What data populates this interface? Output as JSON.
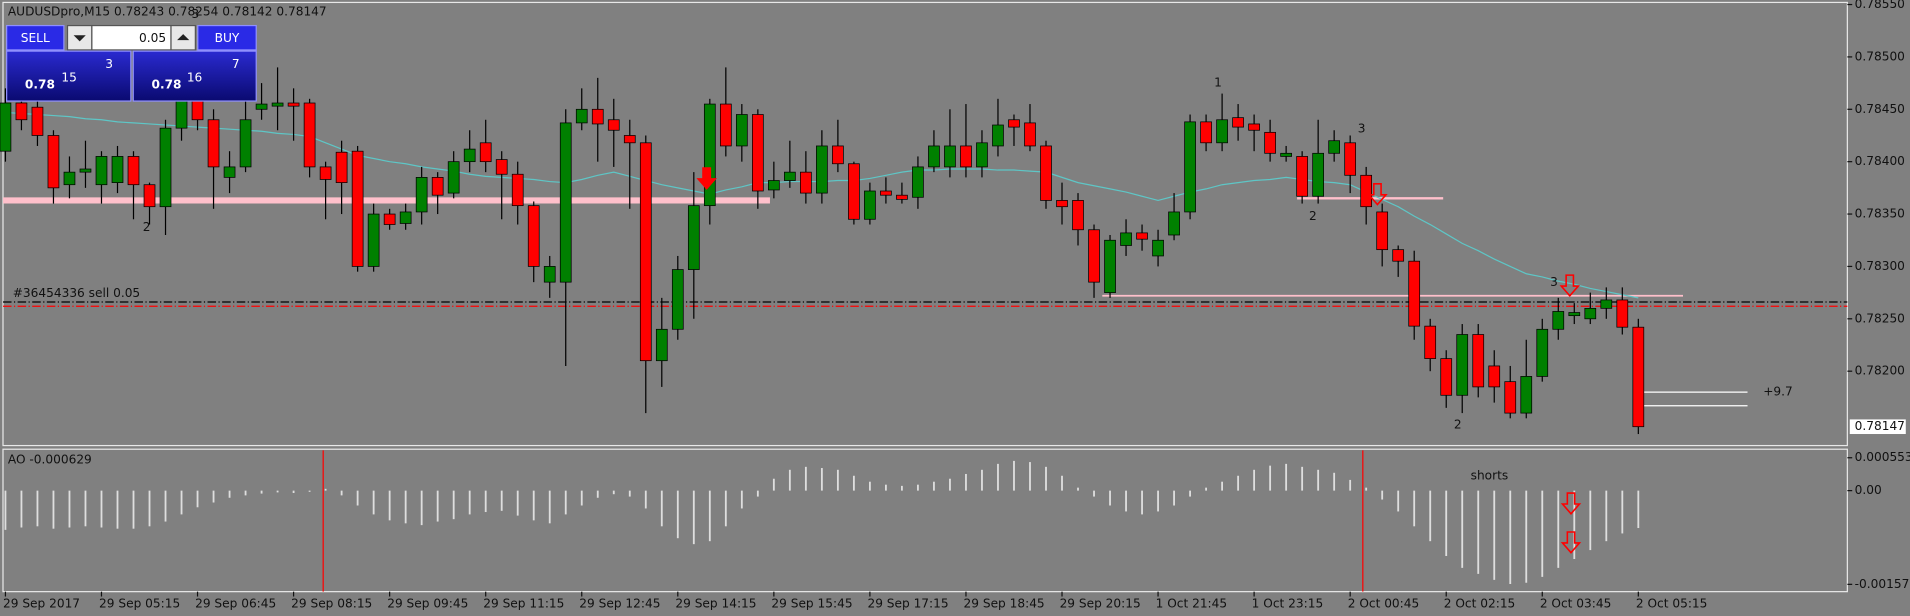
{
  "trade_panel": {
    "sell": "SELL",
    "buy": "BUY",
    "lot": "0.05",
    "bid": {
      "big": "0.78",
      "main": "15",
      "pip": "3"
    },
    "ask": {
      "big": "0.78",
      "main": "16",
      "pip": "7"
    }
  },
  "chart_data": [
    {
      "type": "candlestick",
      "title": "AUDUSDpro,M15  0.78243 0.78254 0.78142 0.78147",
      "categories": [
        "29 Sep 2017",
        null,
        null,
        null,
        null,
        null,
        "29 Sep 05:15",
        null,
        null,
        null,
        null,
        null,
        "29 Sep 06:45",
        null,
        null,
        null,
        null,
        null,
        "29 Sep 08:15",
        null,
        null,
        null,
        null,
        null,
        "29 Sep 09:45",
        null,
        null,
        null,
        null,
        null,
        "29 Sep 11:15",
        null,
        null,
        null,
        null,
        null,
        "29 Sep 12:45",
        null,
        null,
        null,
        null,
        null,
        "29 Sep 14:15",
        null,
        null,
        null,
        null,
        null,
        "29 Sep 15:45",
        null,
        null,
        null,
        null,
        null,
        "29 Sep 17:15",
        null,
        null,
        null,
        null,
        null,
        "29 Sep 18:45",
        null,
        null,
        null,
        null,
        null,
        "29 Sep 20:15",
        null,
        null,
        null,
        null,
        null,
        "1 Oct 21:45",
        null,
        null,
        null,
        null,
        null,
        "1 Oct 23:15",
        null,
        null,
        null,
        null,
        null,
        "2 Oct 00:45",
        null,
        null,
        null,
        null,
        null,
        "2 Oct 02:15",
        null,
        null,
        null,
        null,
        null,
        "2 Oct 03:45",
        null,
        null,
        null,
        null,
        null,
        "2 Oct 05:15"
      ],
      "open": [
        0.7841,
        0.78456,
        0.78452,
        0.78425,
        0.78378,
        0.7839,
        0.78378,
        0.7838,
        0.78405,
        0.78378,
        0.78357,
        0.78432,
        0.78462,
        0.7844,
        0.78385,
        0.78395,
        0.7845,
        0.78453,
        0.78456,
        0.78456,
        0.78395,
        0.78409,
        0.7841,
        0.783,
        0.7835,
        0.78341,
        0.78352,
        0.78385,
        0.7837,
        0.784,
        0.78418,
        0.78402,
        0.78388,
        0.78358,
        0.78285,
        0.78285,
        0.78437,
        0.7845,
        0.7844,
        0.78425,
        0.78418,
        0.7821,
        0.7824,
        0.78297,
        0.78358,
        0.78455,
        0.78415,
        0.78445,
        0.78373,
        0.78382,
        0.7839,
        0.7837,
        0.78415,
        0.78398,
        0.78345,
        0.78372,
        0.78368,
        0.78366,
        0.78395,
        0.78395,
        0.78415,
        0.78395,
        0.78415,
        0.7844,
        0.78437,
        0.78415,
        0.78363,
        0.78363,
        0.78335,
        0.78275,
        0.7832,
        0.78332,
        0.7831,
        0.7833,
        0.78352,
        0.78438,
        0.78418,
        0.78442,
        0.78436,
        0.78428,
        0.78405,
        0.78405,
        0.78367,
        0.78408,
        0.78418,
        0.78387,
        0.78352,
        0.78316,
        0.78305,
        0.78243,
        0.78212,
        0.78177,
        0.78235,
        0.78205,
        0.7819,
        0.7816,
        0.78195,
        0.7824,
        0.78253,
        0.7825,
        0.7826,
        0.78268,
        0.78242
      ],
      "high": [
        0.7847,
        0.7847,
        0.7846,
        0.7843,
        0.78405,
        0.7842,
        0.7841,
        0.78415,
        0.7841,
        0.7838,
        0.7844,
        0.7848,
        0.7849,
        0.7845,
        0.7841,
        0.7847,
        0.78475,
        0.7849,
        0.7847,
        0.7846,
        0.784,
        0.7842,
        0.78415,
        0.7836,
        0.78355,
        0.7836,
        0.78395,
        0.7839,
        0.7841,
        0.7843,
        0.7844,
        0.7841,
        0.784,
        0.78362,
        0.7831,
        0.7845,
        0.7847,
        0.7848,
        0.7846,
        0.7844,
        0.78425,
        0.7827,
        0.7831,
        0.7839,
        0.7846,
        0.7849,
        0.78455,
        0.7845,
        0.784,
        0.7842,
        0.7841,
        0.7843,
        0.7844,
        0.784,
        0.7838,
        0.78385,
        0.7838,
        0.78405,
        0.7843,
        0.7845,
        0.78455,
        0.7843,
        0.7846,
        0.78445,
        0.78455,
        0.7842,
        0.7838,
        0.7837,
        0.7834,
        0.7833,
        0.78345,
        0.7834,
        0.78335,
        0.7837,
        0.78445,
        0.78445,
        0.78465,
        0.78455,
        0.78445,
        0.7844,
        0.78415,
        0.7841,
        0.7844,
        0.7843,
        0.78425,
        0.78395,
        0.7836,
        0.7832,
        0.78315,
        0.7825,
        0.7822,
        0.78245,
        0.78245,
        0.7822,
        0.78205,
        0.7823,
        0.7825,
        0.7827,
        0.78265,
        0.78275,
        0.7828,
        0.7828,
        0.7825
      ],
      "low": [
        0.784,
        0.7843,
        0.78415,
        0.7836,
        0.78365,
        0.78375,
        0.7836,
        0.7837,
        0.78345,
        0.7834,
        0.7833,
        0.7842,
        0.7843,
        0.78355,
        0.7837,
        0.7839,
        0.7844,
        0.7843,
        0.7842,
        0.78385,
        0.78345,
        0.7835,
        0.78295,
        0.78295,
        0.78335,
        0.78335,
        0.7834,
        0.7835,
        0.78365,
        0.7839,
        0.7839,
        0.78345,
        0.7834,
        0.78285,
        0.7827,
        0.78205,
        0.7843,
        0.784,
        0.78395,
        0.78355,
        0.7816,
        0.78185,
        0.7823,
        0.7825,
        0.7834,
        0.78405,
        0.784,
        0.78355,
        0.78365,
        0.78375,
        0.7836,
        0.7836,
        0.7839,
        0.7834,
        0.7834,
        0.7836,
        0.7836,
        0.78355,
        0.7839,
        0.78385,
        0.78385,
        0.78385,
        0.78405,
        0.78415,
        0.7841,
        0.78355,
        0.7834,
        0.7832,
        0.7827,
        0.7827,
        0.7831,
        0.78315,
        0.783,
        0.78325,
        0.78345,
        0.7841,
        0.7841,
        0.7842,
        0.7841,
        0.784,
        0.784,
        0.7836,
        0.7836,
        0.784,
        0.7837,
        0.7834,
        0.783,
        0.7829,
        0.7823,
        0.782,
        0.78165,
        0.7816,
        0.78175,
        0.7817,
        0.78155,
        0.78155,
        0.7819,
        0.7823,
        0.78245,
        0.78245,
        0.7825,
        0.78235,
        0.7814
      ],
      "close": [
        0.78456,
        0.7844,
        0.78425,
        0.78375,
        0.7839,
        0.78393,
        0.78405,
        0.78405,
        0.78378,
        0.78357,
        0.78432,
        0.78462,
        0.7844,
        0.78395,
        0.78395,
        0.7844,
        0.78455,
        0.78456,
        0.78453,
        0.78395,
        0.78383,
        0.7838,
        0.783,
        0.7835,
        0.7834,
        0.78352,
        0.78385,
        0.78368,
        0.784,
        0.78412,
        0.784,
        0.78388,
        0.78358,
        0.783,
        0.783,
        0.78437,
        0.7845,
        0.78436,
        0.7843,
        0.78418,
        0.7821,
        0.7824,
        0.78297,
        0.78358,
        0.78455,
        0.78415,
        0.78445,
        0.78372,
        0.78382,
        0.7839,
        0.7837,
        0.78415,
        0.78398,
        0.78345,
        0.78372,
        0.78368,
        0.78364,
        0.78395,
        0.78415,
        0.78415,
        0.78395,
        0.78418,
        0.78435,
        0.78433,
        0.78415,
        0.78363,
        0.78357,
        0.78335,
        0.78285,
        0.78325,
        0.78332,
        0.78326,
        0.78325,
        0.78352,
        0.78438,
        0.78418,
        0.7844,
        0.78433,
        0.7843,
        0.78408,
        0.78408,
        0.78367,
        0.78408,
        0.7842,
        0.78387,
        0.78357,
        0.78316,
        0.78305,
        0.78243,
        0.78212,
        0.78177,
        0.78235,
        0.78185,
        0.78185,
        0.7816,
        0.78195,
        0.7824,
        0.78257,
        0.78256,
        0.7826,
        0.78268,
        0.78242,
        0.78147
      ],
      "up_color": "#008000",
      "down_color": "#ff0000",
      "moving_average": {
        "color": "#5ec6c6",
        "values": [
          0.78447,
          0.78446,
          0.78445,
          0.78444,
          0.78443,
          0.78441,
          0.7844,
          0.78438,
          0.78437,
          0.78436,
          0.78435,
          0.78434,
          0.78433,
          0.78432,
          0.78431,
          0.7843,
          0.78429,
          0.78427,
          0.78426,
          0.78424,
          0.78418,
          0.78412,
          0.78406,
          0.78403,
          0.784,
          0.78398,
          0.78395,
          0.78393,
          0.78391,
          0.78388,
          0.78386,
          0.78385,
          0.78384,
          0.78383,
          0.78381,
          0.7838,
          0.78383,
          0.78387,
          0.7839,
          0.78386,
          0.78382,
          0.78378,
          0.78375,
          0.78372,
          0.78369,
          0.78373,
          0.78376,
          0.7838,
          0.7838,
          0.78381,
          0.78381,
          0.78381,
          0.78382,
          0.78382,
          0.78384,
          0.78387,
          0.7839,
          0.78392,
          0.78392,
          0.78393,
          0.78393,
          0.78393,
          0.78392,
          0.78392,
          0.78391,
          0.7839,
          0.78385,
          0.7838,
          0.78377,
          0.78374,
          0.78371,
          0.78367,
          0.78363,
          0.78367,
          0.78371,
          0.78374,
          0.78378,
          0.7838,
          0.78382,
          0.78383,
          0.78385,
          0.78383,
          0.78381,
          0.7838,
          0.78378,
          0.78371,
          0.78364,
          0.78357,
          0.78348,
          0.7834,
          0.78331,
          0.78322,
          0.78315,
          0.78307,
          0.783,
          0.78293,
          0.7829,
          0.78286,
          0.78283,
          0.78279,
          0.78276,
          0.78273,
          0.7827
        ]
      },
      "levels": [
        {
          "value": 0.78363,
          "color": "#ffc0cb"
        },
        {
          "value": 0.78365,
          "color": "#ffc0cb"
        },
        {
          "value": 0.78272,
          "color": "#ffc0cb"
        },
        {
          "value": 0.78266,
          "color": "#000000"
        },
        {
          "value": 0.78262,
          "color": "#ff0000"
        },
        {
          "value": 0.7818,
          "color": "#ffffff"
        },
        {
          "value": 0.78167,
          "color": "#ffffff"
        }
      ],
      "order_label": "#36454336 sell 0.05",
      "annotations": [
        "2",
        "3",
        "1",
        "3",
        "2",
        "3",
        "2",
        "+9.7"
      ],
      "last_price": 0.78147,
      "ylim": [
        0.78129,
        0.78552
      ],
      "yticks": [
        {
          "value": 0.7855,
          "label": "0.78550"
        },
        {
          "value": 0.785,
          "label": "0.78500"
        },
        {
          "value": 0.7845,
          "label": "0.78450"
        },
        {
          "value": 0.784,
          "label": "0.78400"
        },
        {
          "value": 0.7835,
          "label": "0.78350"
        },
        {
          "value": 0.783,
          "label": "0.78300"
        },
        {
          "value": 0.7825,
          "label": "0.78250"
        },
        {
          "value": 0.782,
          "label": "0.78200"
        }
      ],
      "grid": false
    },
    {
      "type": "bar",
      "title": "AO -0.000629",
      "color": "#dedede",
      "values": [
        -0.00066,
        -0.00062,
        -0.0006,
        -0.00064,
        -0.00062,
        -0.0006,
        -0.00062,
        -0.00064,
        -0.00064,
        -0.0006,
        -0.00052,
        -0.0004,
        -0.00028,
        -0.0002,
        -0.00012,
        -8e-05,
        -5e-05,
        -3e-05,
        -4e-05,
        -2e-05,
        3e-05,
        -8e-05,
        -0.00025,
        -0.0004,
        -0.0005,
        -0.00055,
        -0.00058,
        -0.00052,
        -0.00048,
        -0.0004,
        -0.00036,
        -0.00034,
        -0.00042,
        -0.0005,
        -0.00055,
        -0.0004,
        -0.00025,
        -0.00012,
        -6e-05,
        -0.0001,
        -0.0003,
        -0.0006,
        -0.0008,
        -0.0009,
        -0.00085,
        -0.0006,
        -0.0003,
        -0.0001,
        0.0002,
        0.00035,
        0.0004,
        0.00038,
        0.00035,
        0.00025,
        0.00015,
        0.0001,
        8e-05,
        0.0001,
        0.00015,
        0.0002,
        0.00028,
        0.00035,
        0.00045,
        0.0005,
        0.00048,
        0.0004,
        0.00025,
        5e-05,
        -0.0001,
        -0.00025,
        -0.00035,
        -0.0004,
        -0.00035,
        -0.00025,
        -0.0001,
        5e-05,
        0.00015,
        0.00025,
        0.00035,
        0.00042,
        0.00045,
        0.0004,
        0.00035,
        0.0003,
        0.00018,
        5e-05,
        -0.00015,
        -0.00035,
        -0.0006,
        -0.00085,
        -0.0011,
        -0.0013,
        -0.0014,
        -0.0015,
        -0.00157,
        -0.00155,
        -0.00145,
        -0.0013,
        -0.00115,
        -0.001,
        -0.00085,
        -0.00072,
        -0.000629
      ],
      "annotations": [
        "shorts"
      ],
      "ylim": [
        -0.001576,
        0.000553
      ],
      "yticks": [
        0.000553,
        {
          "value": 0,
          "label": "0.00"
        },
        -0.001576
      ]
    }
  ]
}
